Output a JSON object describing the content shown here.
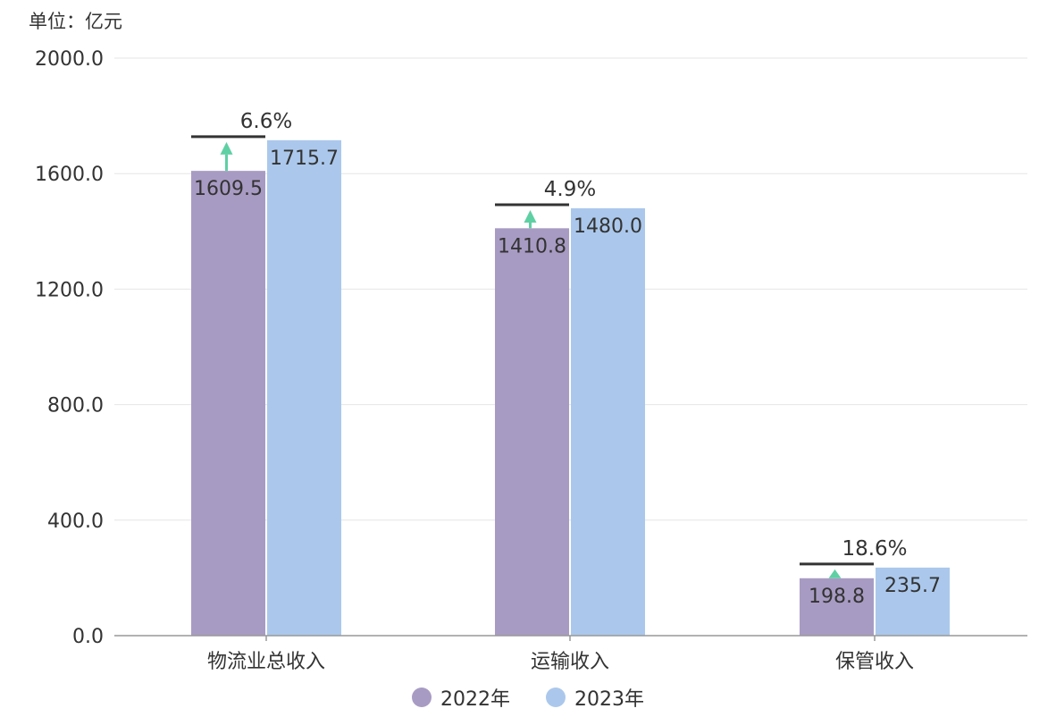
{
  "chart_data": {
    "type": "bar",
    "unit_label": "单位：亿元",
    "categories": [
      "物流业总收入",
      "运输收入",
      "保管收入"
    ],
    "series": [
      {
        "name": "2022年",
        "values": [
          1609.5,
          1410.8,
          198.8
        ],
        "color": "#a89bc3"
      },
      {
        "name": "2023年",
        "values": [
          1715.7,
          1480.0,
          235.7
        ],
        "color": "#abc8ec"
      }
    ],
    "growth_labels": [
      "6.6%",
      "4.9%",
      "18.6%"
    ],
    "growth_arrow_color": "#5fd0a4",
    "yticks": [
      "0.0",
      "400.0",
      "800.0",
      "1200.0",
      "1600.0",
      "2000.0"
    ],
    "ylim": [
      0,
      2000
    ],
    "grid": true,
    "legend_position": "bottom-center"
  }
}
